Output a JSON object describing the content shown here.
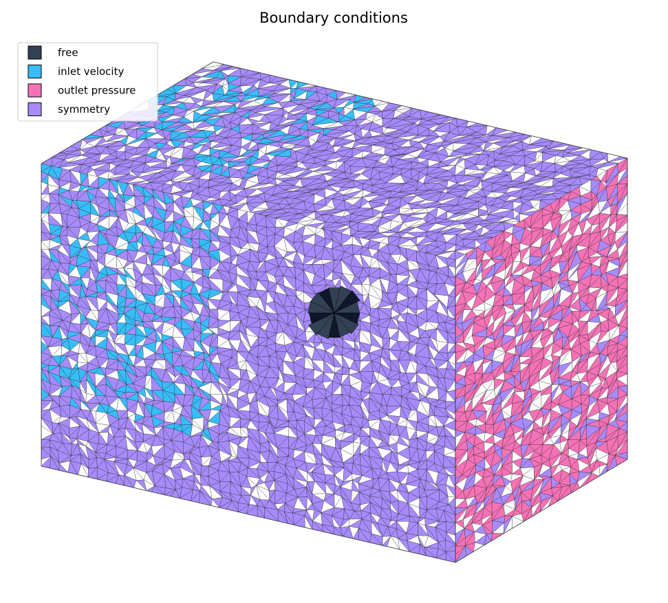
{
  "title": "Boundary conditions",
  "legend": {
    "items": [
      {
        "label": "free",
        "color": "#334155"
      },
      {
        "label": "inlet velocity",
        "color": "#38bdf8"
      },
      {
        "label": "outlet pressure",
        "color": "#f472b6"
      },
      {
        "label": "symmetry",
        "color": "#a78bfa"
      }
    ]
  }
}
